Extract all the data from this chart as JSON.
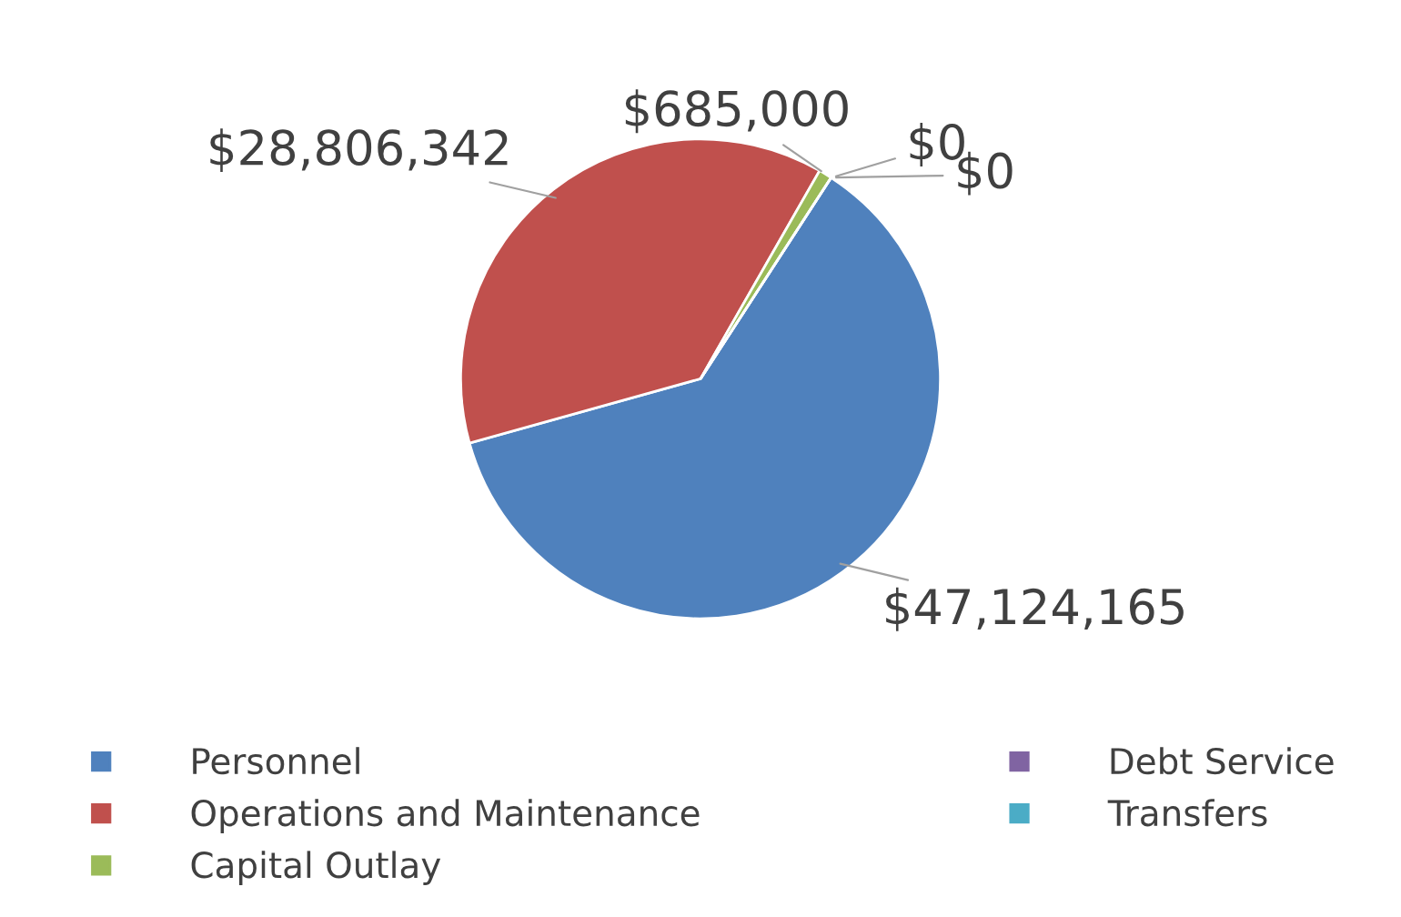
{
  "chart_data": {
    "type": "pie",
    "categories": [
      "Personnel",
      "Operations and Maintenance",
      "Capital Outlay",
      "Debt Service",
      "Transfers"
    ],
    "values": [
      47124165,
      28806342,
      685000,
      0,
      0
    ],
    "value_labels": [
      "$47,124,165",
      "$28,806,342",
      "$685,000",
      "$0",
      "$0"
    ],
    "colors": [
      "#4f81bd",
      "#c0504d",
      "#9bbb59",
      "#8064a2",
      "#4bacc6"
    ],
    "legend": "bottom"
  }
}
